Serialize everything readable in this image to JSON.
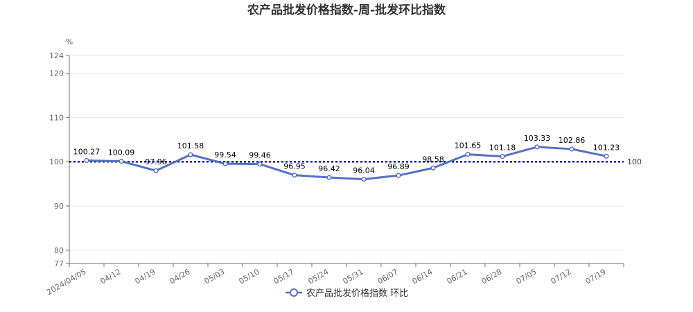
{
  "chart_data": {
    "type": "line",
    "title": "农产品批发价格指数-周-批发环比指数",
    "ylabel": "%",
    "categories": [
      "2024/04/05",
      "04/12",
      "04/19",
      "04/26",
      "05/03",
      "05/10",
      "05/17",
      "05/24",
      "05/31",
      "06/07",
      "06/14",
      "06/21",
      "06/28",
      "07/05",
      "07/12",
      "07/19"
    ],
    "series": [
      {
        "name": "农产品批发价格指数 环比",
        "values": [
          100.27,
          100.09,
          97.96,
          101.58,
          99.54,
          99.46,
          96.95,
          96.42,
          96.04,
          96.89,
          98.58,
          101.65,
          101.18,
          103.33,
          102.86,
          101.23
        ],
        "labels": [
          "100.27",
          "100.09",
          "97.96",
          "101.58",
          "99.54",
          "99.46",
          "96.95",
          "96.42",
          "96.04",
          "96.89",
          "98.58",
          "101.65",
          "101.18",
          "103.33",
          "102.86",
          "101.23"
        ],
        "color": "#5470c6"
      }
    ],
    "ylim": [
      77,
      124
    ],
    "yticks": [
      77,
      80,
      90,
      100,
      110,
      120,
      124
    ],
    "reference_line": {
      "value": 100,
      "label": "100",
      "color": "#0000cc"
    },
    "grid": true,
    "legend_position": "bottom-center"
  }
}
